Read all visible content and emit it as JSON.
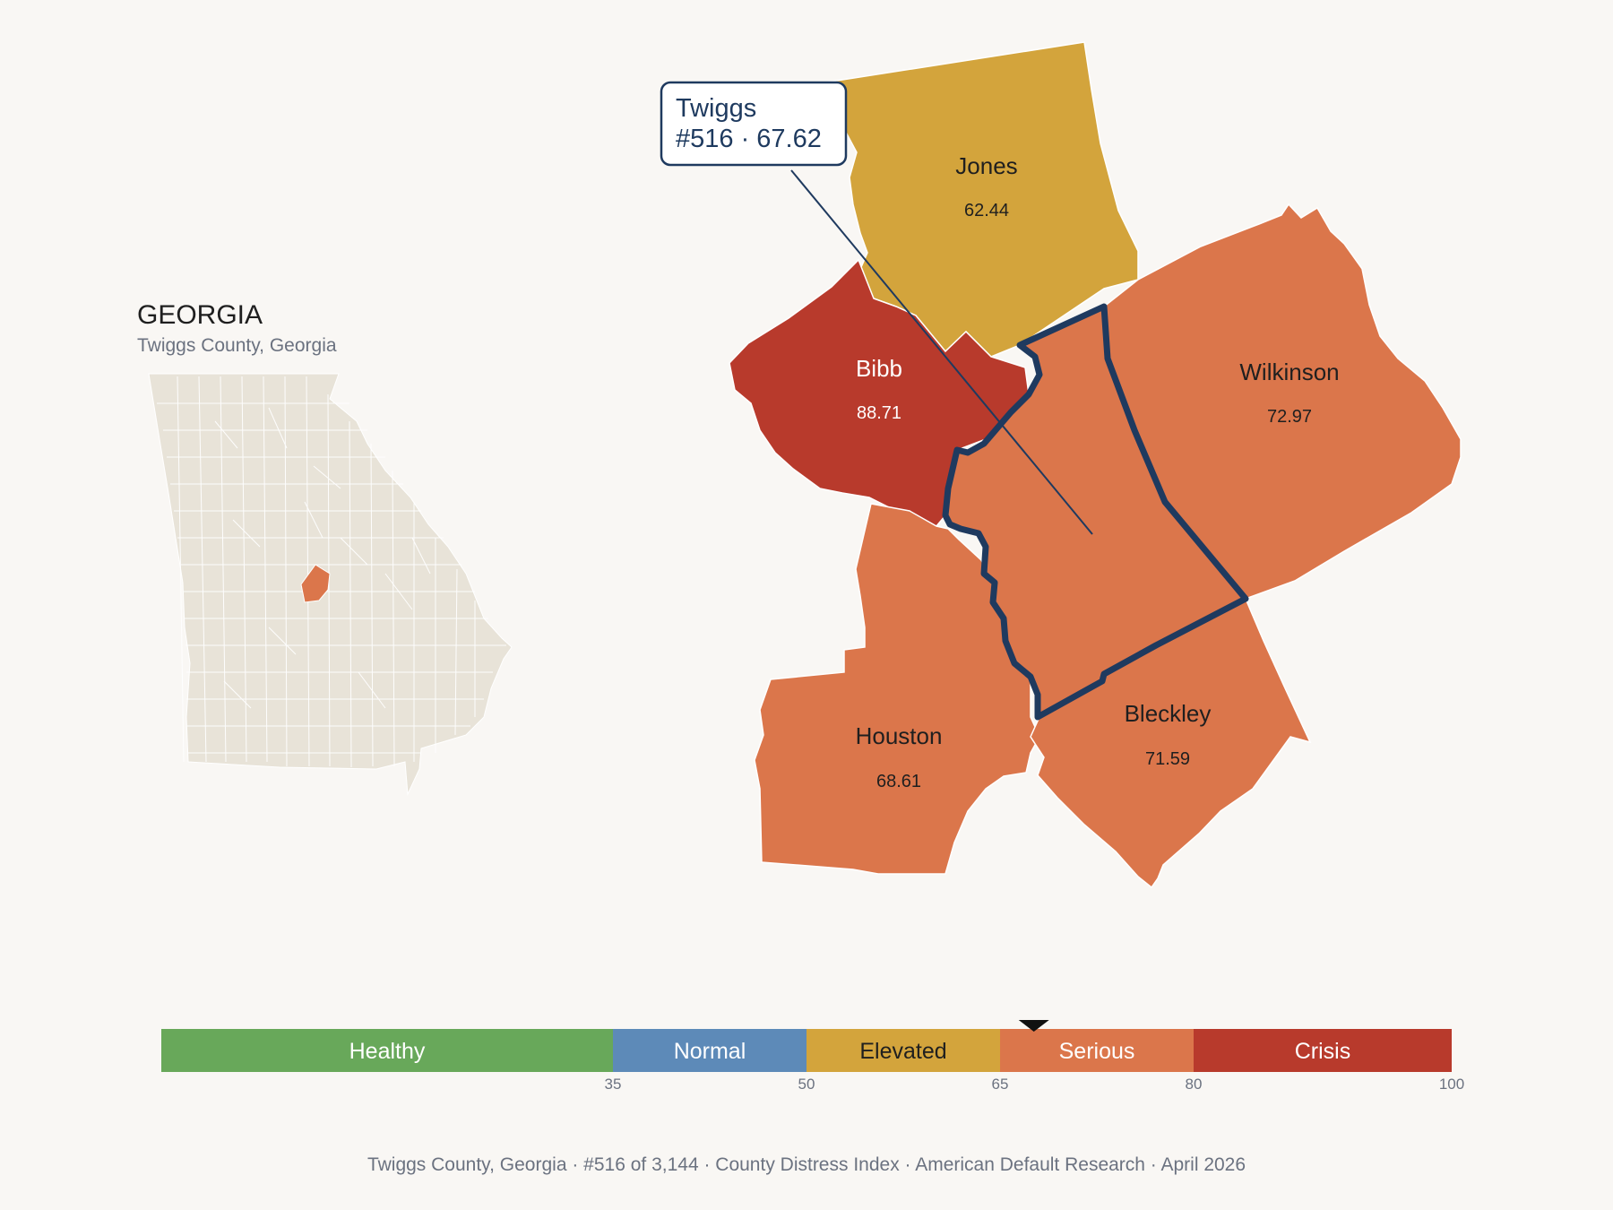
{
  "inset": {
    "state_name": "GEORGIA",
    "subtitle": "Twiggs County, Georgia"
  },
  "colors": {
    "healthy": "#68a85a",
    "normal": "#5d8ab8",
    "elevated": "#d3a43c",
    "serious": "#db764b",
    "crisis": "#b83a2c",
    "outline": "#1f3a5f",
    "inset_fill": "#e8e3d8"
  },
  "callout": {
    "line1": "Twiggs",
    "line2": "#516 · 67.62"
  },
  "counties": [
    {
      "name": "Jones",
      "value": "62.44",
      "category": "elevated"
    },
    {
      "name": "Bibb",
      "value": "88.71",
      "category": "crisis"
    },
    {
      "name": "Wilkinson",
      "value": "72.97",
      "category": "serious"
    },
    {
      "name": "Houston",
      "value": "68.61",
      "category": "serious"
    },
    {
      "name": "Bleckley",
      "value": "71.59",
      "category": "serious"
    },
    {
      "name": "Twiggs",
      "value": "67.62",
      "category": "serious",
      "selected": true
    }
  ],
  "scale": {
    "segments": [
      {
        "label": "Healthy",
        "from": 0,
        "to": 35,
        "color": "#68a85a"
      },
      {
        "label": "Normal",
        "from": 35,
        "to": 50,
        "color": "#5d8ab8"
      },
      {
        "label": "Elevated",
        "from": 50,
        "to": 65,
        "color": "#d3a43c"
      },
      {
        "label": "Serious",
        "from": 65,
        "to": 80,
        "color": "#db764b"
      },
      {
        "label": "Crisis",
        "from": 80,
        "to": 100,
        "color": "#b83a2c"
      }
    ],
    "ticks": [
      "35",
      "50",
      "65",
      "80",
      "100"
    ],
    "marker_value": 67.62
  },
  "footer": {
    "text": "Twiggs County, Georgia  ·  #516 of 3,144  ·  County Distress Index  ·  American Default Research  ·  April 2026"
  }
}
